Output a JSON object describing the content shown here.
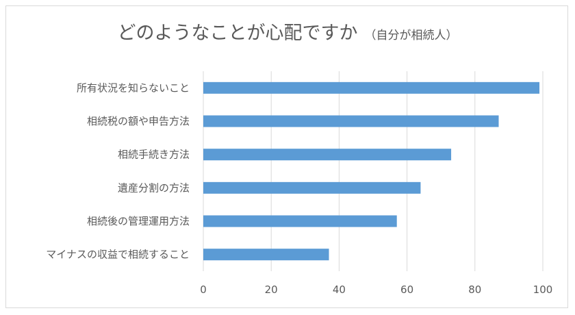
{
  "chart_data": {
    "type": "bar",
    "orientation": "horizontal",
    "title": "どのようなことが心配ですか",
    "subtitle": "（自分が相続人）",
    "categories": [
      "所有状況を知らないこと",
      "相続税の額や申告方法",
      "相続手続き方法",
      "遺産分割の方法",
      "相続後の管理運用方法",
      "マイナスの収益で相続すること"
    ],
    "values": [
      99,
      87,
      73,
      64,
      57,
      37
    ],
    "xlim": [
      0,
      100
    ],
    "xticks": [
      "0",
      "20",
      "40",
      "60",
      "80",
      "100"
    ],
    "xlabel": "",
    "ylabel": "",
    "grid": true,
    "legend": "none",
    "colors": {
      "bar": "#5b9bd5",
      "grid": "#d9d9d9",
      "text": "#595959"
    }
  }
}
